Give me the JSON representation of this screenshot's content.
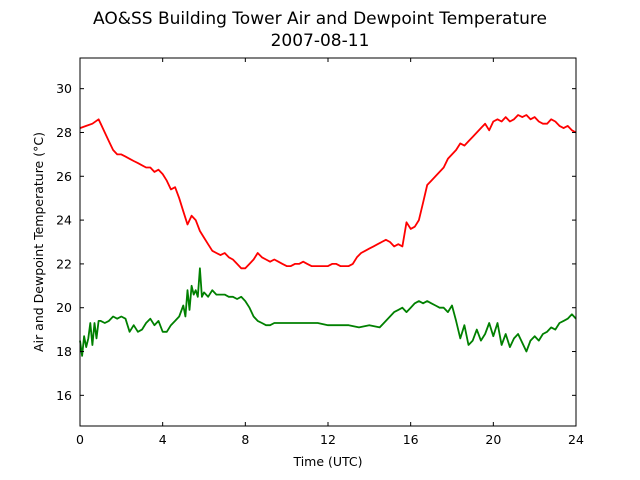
{
  "chart_data": {
    "type": "line",
    "title": "AO&SS Building Tower Air and Dewpoint Temperature",
    "subtitle": "2007-08-11",
    "xlabel": "Time (UTC)",
    "ylabel": "Air and Dewpoint Temperature (°C)",
    "xlim": [
      0,
      24
    ],
    "ylim": [
      14.6,
      31.4
    ],
    "xticks": [
      0,
      4,
      8,
      12,
      16,
      20,
      24
    ],
    "yticks": [
      16,
      18,
      20,
      22,
      24,
      26,
      28,
      30
    ],
    "grid": false,
    "legend": "none",
    "series": [
      {
        "color": "#ff0000",
        "x": [
          0,
          0.3,
          0.6,
          0.9,
          1.0,
          1.2,
          1.4,
          1.6,
          1.8,
          2.0,
          2.2,
          2.4,
          2.6,
          2.8,
          3.0,
          3.2,
          3.4,
          3.6,
          3.8,
          4.0,
          4.2,
          4.4,
          4.6,
          4.8,
          5.0,
          5.2,
          5.4,
          5.6,
          5.8,
          6.0,
          6.2,
          6.4,
          6.6,
          6.8,
          7.0,
          7.2,
          7.4,
          7.6,
          7.8,
          8.0,
          8.2,
          8.4,
          8.6,
          8.8,
          9.0,
          9.2,
          9.4,
          9.6,
          9.8,
          10.0,
          10.2,
          10.4,
          10.6,
          10.8,
          11.0,
          11.2,
          11.4,
          11.6,
          11.8,
          12.0,
          12.2,
          12.4,
          12.6,
          12.8,
          13.0,
          13.2,
          13.4,
          13.6,
          13.8,
          14.0,
          14.2,
          14.4,
          14.6,
          14.8,
          15.0,
          15.2,
          15.4,
          15.6,
          15.8,
          16.0,
          16.2,
          16.4,
          16.6,
          16.8,
          17.0,
          17.2,
          17.4,
          17.6,
          17.8,
          18.0,
          18.2,
          18.4,
          18.6,
          18.8,
          19.0,
          19.2,
          19.4,
          19.6,
          19.8,
          20.0,
          20.2,
          20.4,
          20.6,
          20.8,
          21.0,
          21.2,
          21.4,
          21.6,
          21.8,
          22.0,
          22.2,
          22.4,
          22.6,
          22.8,
          23.0,
          23.2,
          23.4,
          23.6,
          23.8,
          24.0
        ],
        "values": [
          28.2,
          28.3,
          28.4,
          28.6,
          28.4,
          28.0,
          27.6,
          27.2,
          27.0,
          27.0,
          26.9,
          26.8,
          26.7,
          26.6,
          26.5,
          26.4,
          26.4,
          26.2,
          26.3,
          26.1,
          25.8,
          25.4,
          25.5,
          25.0,
          24.4,
          23.8,
          24.2,
          24.0,
          23.5,
          23.2,
          22.9,
          22.6,
          22.5,
          22.4,
          22.5,
          22.3,
          22.2,
          22.0,
          21.8,
          21.8,
          22.0,
          22.2,
          22.5,
          22.3,
          22.2,
          22.1,
          22.2,
          22.1,
          22.0,
          21.9,
          21.9,
          22.0,
          22.0,
          22.1,
          22.0,
          21.9,
          21.9,
          21.9,
          21.9,
          21.9,
          22.0,
          22.0,
          21.9,
          21.9,
          21.9,
          22.0,
          22.3,
          22.5,
          22.6,
          22.7,
          22.8,
          22.9,
          23.0,
          23.1,
          23.0,
          22.8,
          22.9,
          22.8,
          23.9,
          23.6,
          23.7,
          24.0,
          24.8,
          25.6,
          25.8,
          26.0,
          26.2,
          26.4,
          26.8,
          27.0,
          27.2,
          27.5,
          27.4,
          27.6,
          27.8,
          28.0,
          28.2,
          28.4,
          28.1,
          28.5,
          28.6,
          28.5,
          28.7,
          28.5,
          28.6,
          28.8,
          28.7,
          28.8,
          28.6,
          28.7,
          28.5,
          28.4,
          28.4,
          28.6,
          28.5,
          28.3,
          28.2,
          28.3,
          28.1,
          28.0
        ]
      },
      {
        "color": "#008000",
        "x": [
          0,
          0.1,
          0.2,
          0.3,
          0.4,
          0.5,
          0.6,
          0.7,
          0.8,
          0.9,
          1.0,
          1.2,
          1.4,
          1.6,
          1.8,
          2.0,
          2.2,
          2.4,
          2.6,
          2.8,
          3.0,
          3.2,
          3.4,
          3.6,
          3.8,
          4.0,
          4.2,
          4.4,
          4.6,
          4.8,
          5.0,
          5.1,
          5.2,
          5.3,
          5.4,
          5.5,
          5.6,
          5.7,
          5.8,
          5.9,
          6.0,
          6.2,
          6.4,
          6.6,
          6.8,
          7.0,
          7.2,
          7.4,
          7.6,
          7.8,
          8.0,
          8.2,
          8.4,
          8.6,
          8.8,
          9.0,
          9.2,
          9.4,
          9.6,
          9.8,
          10.0,
          10.5,
          11.0,
          11.5,
          12.0,
          12.5,
          13.0,
          13.5,
          14.0,
          14.5,
          15.0,
          15.2,
          15.4,
          15.6,
          15.8,
          16.0,
          16.2,
          16.4,
          16.6,
          16.8,
          17.0,
          17.2,
          17.4,
          17.6,
          17.8,
          18.0,
          18.2,
          18.4,
          18.6,
          18.8,
          19.0,
          19.2,
          19.4,
          19.6,
          19.8,
          20.0,
          20.2,
          20.4,
          20.6,
          20.8,
          21.0,
          21.2,
          21.4,
          21.6,
          21.8,
          22.0,
          22.2,
          22.4,
          22.6,
          22.8,
          23.0,
          23.2,
          23.4,
          23.6,
          23.8,
          24.0
        ],
        "values": [
          18.5,
          17.8,
          18.7,
          18.2,
          18.6,
          19.3,
          18.3,
          19.3,
          18.6,
          19.4,
          19.4,
          19.3,
          19.4,
          19.6,
          19.5,
          19.6,
          19.5,
          18.9,
          19.2,
          18.9,
          19.0,
          19.3,
          19.5,
          19.2,
          19.4,
          18.9,
          18.9,
          19.2,
          19.4,
          19.6,
          20.1,
          19.6,
          20.8,
          19.9,
          21.0,
          20.6,
          20.8,
          20.5,
          21.8,
          20.5,
          20.7,
          20.5,
          20.8,
          20.6,
          20.6,
          20.6,
          20.5,
          20.5,
          20.4,
          20.5,
          20.3,
          20.0,
          19.6,
          19.4,
          19.3,
          19.2,
          19.2,
          19.3,
          19.3,
          19.3,
          19.3,
          19.3,
          19.3,
          19.3,
          19.2,
          19.2,
          19.2,
          19.1,
          19.2,
          19.1,
          19.6,
          19.8,
          19.9,
          20.0,
          19.8,
          20.0,
          20.2,
          20.3,
          20.2,
          20.3,
          20.2,
          20.1,
          20.0,
          20.0,
          19.8,
          20.1,
          19.4,
          18.6,
          19.2,
          18.3,
          18.5,
          19.0,
          18.5,
          18.8,
          19.3,
          18.7,
          19.3,
          18.3,
          18.8,
          18.2,
          18.6,
          18.8,
          18.4,
          18.0,
          18.5,
          18.7,
          18.5,
          18.8,
          18.9,
          19.1,
          19.0,
          19.3,
          19.4,
          19.5,
          19.7,
          19.5
        ]
      }
    ]
  }
}
